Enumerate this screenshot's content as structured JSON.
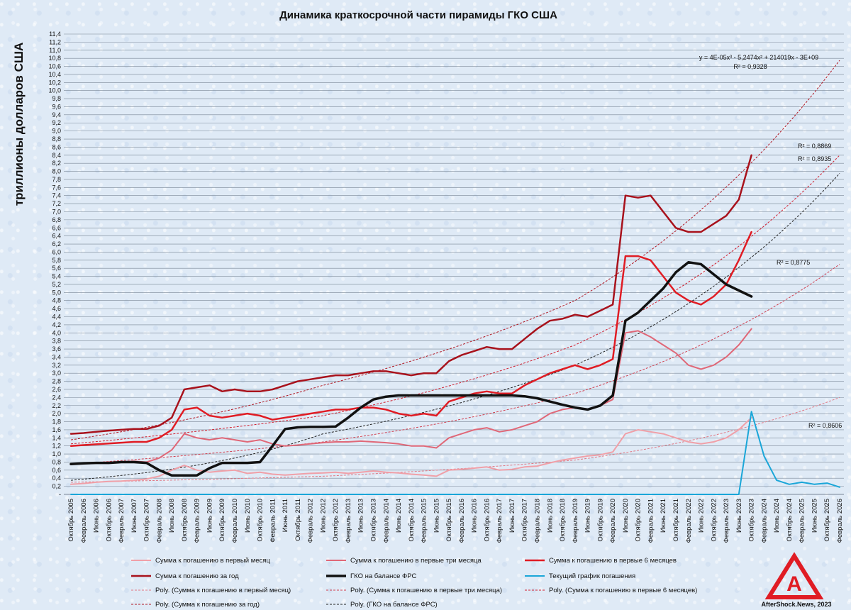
{
  "chart_data": {
    "type": "line",
    "title": "Динамика краткосрочной части пирамиды ГКО США",
    "ylabel": "триллионы долларов США",
    "ylim": [
      0,
      11.4
    ],
    "ytick_step": 0.2,
    "ytick_first_label": "-",
    "grid": true,
    "x_categories": [
      "Октябрь 2005",
      "Февраль 2006",
      "Июнь 2006",
      "Октябрь 2006",
      "Февраль 2007",
      "Июнь 2007",
      "Октябрь 2007",
      "Февраль 2008",
      "Июнь 2008",
      "Октябрь 2008",
      "Февраль 2009",
      "Июнь 2009",
      "Октябрь 2009",
      "Февраль 2010",
      "Июнь 2010",
      "Октябрь 2010",
      "Февраль 2011",
      "Июнь 2011",
      "Октябрь 2011",
      "Февраль 2012",
      "Июнь 2012",
      "Октябрь 2012",
      "Февраль 2013",
      "Июнь 2013",
      "Октябрь 2013",
      "Февраль 2014",
      "Июнь 2014",
      "Октябрь 2014",
      "Февраль 2015",
      "Июнь 2015",
      "Октябрь 2015",
      "Февраль 2016",
      "Июнь 2016",
      "Октябрь 2016",
      "Февраль 2017",
      "Июнь 2017",
      "Октябрь 2017",
      "Февраль 2018",
      "Июнь 2018",
      "Октябрь 2018",
      "Февраль 2019",
      "Июнь 2019",
      "Октябрь 2019",
      "Февраль 2020",
      "Июнь 2020",
      "Октябрь 2020",
      "Февраль 2021",
      "Июнь 2021",
      "Октябрь 2021",
      "Февраль 2022",
      "Июнь 2022",
      "Октябрь 2022",
      "Февраль 2023",
      "Июнь 2023",
      "Октябрь 2023",
      "Февраль 2024",
      "Июнь 2024",
      "Октябрь 2024",
      "Февраль 2025",
      "Июнь 2025",
      "Октябрь 2025",
      "Февраль 2026"
    ],
    "series": [
      {
        "name": "Сумма к погашению в первый месяц",
        "color": "#f0a0a8",
        "width": 2,
        "values": [
          0.25,
          0.27,
          0.3,
          0.32,
          0.33,
          0.35,
          0.38,
          0.45,
          0.6,
          0.72,
          0.6,
          0.55,
          0.58,
          0.6,
          0.52,
          0.55,
          0.5,
          0.48,
          0.5,
          0.52,
          0.53,
          0.55,
          0.52,
          0.55,
          0.58,
          0.55,
          0.53,
          0.5,
          0.48,
          0.45,
          0.6,
          0.62,
          0.65,
          0.68,
          0.6,
          0.62,
          0.68,
          0.7,
          0.78,
          0.85,
          0.9,
          0.95,
          0.98,
          1.05,
          1.5,
          1.6,
          1.55,
          1.5,
          1.4,
          1.3,
          1.25,
          1.3,
          1.4,
          1.6,
          1.9,
          null,
          null,
          null,
          null,
          null,
          null,
          null
        ]
      },
      {
        "name": "Сумма к погашению в первые три месяца",
        "color": "#e06878",
        "width": 2,
        "values": [
          0.75,
          0.77,
          0.78,
          0.8,
          0.8,
          0.82,
          0.8,
          0.9,
          1.1,
          1.5,
          1.4,
          1.35,
          1.4,
          1.35,
          1.3,
          1.35,
          1.25,
          1.2,
          1.22,
          1.25,
          1.28,
          1.3,
          1.3,
          1.32,
          1.3,
          1.28,
          1.25,
          1.2,
          1.2,
          1.15,
          1.4,
          1.5,
          1.6,
          1.65,
          1.55,
          1.6,
          1.7,
          1.8,
          2.0,
          2.1,
          2.15,
          2.1,
          2.2,
          2.35,
          4.0,
          4.05,
          3.9,
          3.7,
          3.5,
          3.2,
          3.1,
          3.2,
          3.4,
          3.7,
          4.1,
          null,
          null,
          null,
          null,
          null,
          null,
          null
        ]
      },
      {
        "name": "Сумма к погашению в первые 6 месяцев",
        "color": "#e01c24",
        "width": 2.5,
        "values": [
          1.2,
          1.22,
          1.24,
          1.26,
          1.28,
          1.3,
          1.3,
          1.4,
          1.6,
          2.1,
          2.15,
          1.95,
          1.9,
          1.95,
          2.0,
          1.95,
          1.85,
          1.9,
          1.95,
          2.0,
          2.05,
          2.1,
          2.1,
          2.15,
          2.15,
          2.1,
          2.0,
          1.95,
          2.0,
          1.95,
          2.3,
          2.4,
          2.5,
          2.55,
          2.5,
          2.5,
          2.7,
          2.85,
          3.0,
          3.1,
          3.2,
          3.1,
          3.2,
          3.35,
          5.9,
          5.9,
          5.8,
          5.4,
          5.0,
          4.8,
          4.7,
          4.9,
          5.2,
          5.8,
          6.5,
          null,
          null,
          null,
          null,
          null,
          null,
          null
        ]
      },
      {
        "name": "Сумма к погашению за год",
        "color": "#a8121c",
        "width": 2.5,
        "values": [
          1.5,
          1.52,
          1.55,
          1.58,
          1.6,
          1.62,
          1.62,
          1.7,
          1.9,
          2.6,
          2.65,
          2.7,
          2.55,
          2.6,
          2.55,
          2.55,
          2.6,
          2.7,
          2.8,
          2.85,
          2.9,
          2.95,
          2.95,
          3.0,
          3.05,
          3.05,
          3.0,
          2.95,
          3.0,
          3.0,
          3.3,
          3.45,
          3.55,
          3.65,
          3.6,
          3.6,
          3.85,
          4.1,
          4.3,
          4.35,
          4.45,
          4.4,
          4.55,
          4.7,
          7.4,
          7.35,
          7.4,
          7.0,
          6.6,
          6.5,
          6.5,
          6.7,
          6.9,
          7.3,
          8.4,
          null,
          null,
          null,
          null,
          null,
          null,
          null
        ]
      },
      {
        "name": "ГКО на балансе ФРС",
        "color": "#111111",
        "width": 3.5,
        "values": [
          0.75,
          0.77,
          0.78,
          0.78,
          0.8,
          0.8,
          0.78,
          0.6,
          0.47,
          0.47,
          0.47,
          0.65,
          0.78,
          0.78,
          0.78,
          0.8,
          1.2,
          1.62,
          1.66,
          1.67,
          1.67,
          1.68,
          1.9,
          2.15,
          2.35,
          2.42,
          2.45,
          2.45,
          2.45,
          2.45,
          2.45,
          2.45,
          2.45,
          2.45,
          2.45,
          2.45,
          2.43,
          2.38,
          2.3,
          2.22,
          2.15,
          2.1,
          2.2,
          2.45,
          4.3,
          4.5,
          4.8,
          5.1,
          5.5,
          5.75,
          5.7,
          5.45,
          5.2,
          5.05,
          4.9,
          null,
          null,
          null,
          null,
          null,
          null,
          null
        ]
      },
      {
        "name": "Текущий график погашения",
        "color": "#1aa6d8",
        "width": 2,
        "values": [
          0,
          0,
          0,
          0,
          0,
          0,
          0,
          0,
          0,
          0,
          0,
          0,
          0,
          0,
          0,
          0,
          0,
          0,
          0,
          0,
          0,
          0,
          0,
          0,
          0,
          0,
          0,
          0,
          0,
          0,
          0,
          0,
          0,
          0,
          0,
          0,
          0,
          0,
          0,
          0,
          0,
          0,
          0,
          0,
          0,
          0,
          0,
          0,
          0,
          0,
          0,
          0,
          0,
          0,
          2.05,
          0.95,
          0.35,
          0.25,
          0.3,
          0.25,
          0.28,
          0.18
        ]
      }
    ],
    "trendlines": [
      {
        "name": "Poly. (Сумма к погашению в первый месяц)",
        "color": "#e07884",
        "end_index": 61,
        "values_at": {
          "0": 0.3,
          "20": 0.45,
          "40": 0.85,
          "61": 2.4
        },
        "r2": "R² = 0,8606"
      },
      {
        "name": "Poly. (Сумма к погашению в первые три месяца)",
        "color": "#d04050",
        "end_index": 61,
        "values_at": {
          "0": 0.75,
          "20": 1.3,
          "40": 2.5,
          "61": 5.7
        },
        "r2": "R² = 0,8775"
      },
      {
        "name": "Poly. (Сумма к погашению в первые 6 месяцев)",
        "color": "#d02030",
        "end_index": 61,
        "values_at": {
          "0": 1.25,
          "20": 1.95,
          "40": 3.7,
          "61": 8.4
        },
        "r2": "R² = 0,8935"
      },
      {
        "name": "Poly. (Сумма к погашению за год)",
        "color": "#b01824",
        "end_index": 61,
        "values_at": {
          "0": 1.35,
          "20": 2.7,
          "40": 4.8,
          "61": 10.75
        },
        "r2": "R² = 0,8869"
      },
      {
        "name": "Poly. (ГКО на балансе ФРС)",
        "color": "#222222",
        "end_index": 61,
        "values_at": {
          "0": 0.35,
          "20": 1.5,
          "40": 3.2,
          "61": 7.95
        },
        "r2": ""
      }
    ],
    "annotations": {
      "equation": "y = 4E-05x³ - 5,2474x² + 214019x - 3E+09",
      "equation_r2": "R² = 0,9328",
      "r2_a": "R² = 0,8869",
      "r2_b": "R² = 0,8935",
      "r2_c": "R² = 0,8775",
      "r2_d": "R² = 0,8606"
    },
    "legend_position": "bottom"
  },
  "logo": {
    "text": "AfterShock.News, 2023",
    "color": "#e01c24"
  }
}
